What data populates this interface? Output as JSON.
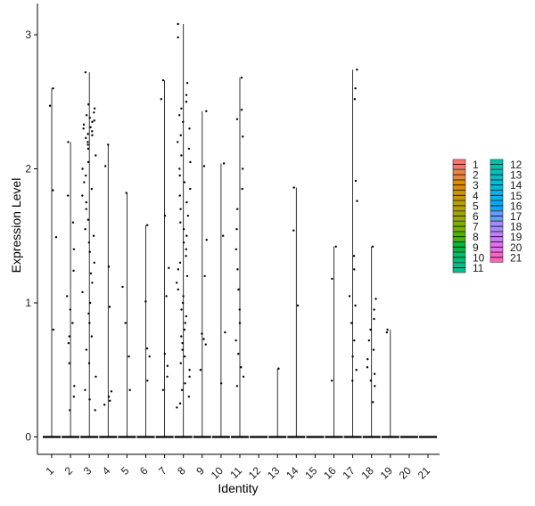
{
  "chart_data": {
    "type": "violin",
    "title": "",
    "xlabel": "Identity",
    "ylabel": "Expression Level",
    "ylim": [
      -0.15,
      3.2
    ],
    "yticks": [
      0,
      1,
      2,
      3
    ],
    "grid": false,
    "legend_placement": "right",
    "legend_columns": 2,
    "categories": [
      "1",
      "2",
      "3",
      "4",
      "5",
      "6",
      "7",
      "8",
      "9",
      "10",
      "11",
      "12",
      "13",
      "14",
      "15",
      "16",
      "17",
      "18",
      "19",
      "20",
      "21"
    ],
    "colors": [
      "#F8766D",
      "#ED813E",
      "#DE8C00",
      "#CD9600",
      "#B79F00",
      "#9DA700",
      "#7CAE00",
      "#49B500",
      "#00BA38",
      "#00BE6C",
      "#00BF8C",
      "#00C0AA",
      "#00BFC4",
      "#00BBDC",
      "#00B4F0",
      "#00A9FF",
      "#619CFF",
      "#9F8CFF",
      "#C77CFF",
      "#E76BF3",
      "#FF61C3"
    ],
    "max_values": [
      2.6,
      2.2,
      2.72,
      2.18,
      1.82,
      1.58,
      2.66,
      3.08,
      2.43,
      2.04,
      2.68,
      0,
      0.51,
      1.86,
      0,
      1.42,
      2.74,
      1.42,
      0.8,
      0,
      0
    ],
    "points": [
      {
        "group": "1",
        "values": [
          2.6,
          2.47,
          1.84,
          1.49,
          0.8
        ]
      },
      {
        "group": "2",
        "values": [
          2.2,
          1.8,
          1.6,
          1.4,
          1.24,
          1.05,
          0.95,
          0.85,
          0.75,
          0.7,
          0.55,
          0.38,
          0.3,
          0.2
        ]
      },
      {
        "group": "3",
        "values": [
          2.72,
          2.48,
          2.45,
          2.42,
          2.4,
          2.38,
          2.36,
          2.35,
          2.33,
          2.31,
          2.3,
          2.28,
          2.26,
          2.25,
          2.23,
          2.2,
          2.18,
          2.15,
          2.1,
          2.05,
          2.0,
          1.95,
          1.9,
          1.85,
          1.8,
          1.75,
          1.7,
          1.62,
          1.55,
          1.5,
          1.45,
          1.38,
          1.3,
          1.22,
          1.15,
          1.08,
          1.0,
          0.92,
          0.85,
          0.75,
          0.65,
          0.55,
          0.45,
          0.35,
          0.28,
          0.2
        ]
      },
      {
        "group": "4",
        "values": [
          2.18,
          2.02,
          1.27,
          0.97,
          0.34,
          0.3,
          0.27,
          0.24
        ]
      },
      {
        "group": "5",
        "values": [
          1.82,
          1.12,
          0.85,
          0.6,
          0.35
        ]
      },
      {
        "group": "6",
        "values": [
          1.58,
          1.01,
          0.66,
          0.6,
          0.42
        ]
      },
      {
        "group": "7",
        "values": [
          2.66,
          2.52,
          1.65,
          1.26,
          1.05,
          0.62,
          0.53,
          0.45,
          0.35
        ]
      },
      {
        "group": "8",
        "values": [
          3.08,
          2.98,
          2.64,
          2.55,
          2.5,
          2.45,
          2.4,
          2.35,
          2.3,
          2.25,
          2.2,
          2.15,
          2.1,
          2.05,
          2.0,
          1.95,
          1.9,
          1.85,
          1.8,
          1.75,
          1.7,
          1.65,
          1.6,
          1.55,
          1.5,
          1.45,
          1.4,
          1.35,
          1.3,
          1.25,
          1.2,
          1.15,
          1.1,
          1.05,
          1.0,
          0.95,
          0.9,
          0.85,
          0.8,
          0.75,
          0.7,
          0.65,
          0.6,
          0.55,
          0.5,
          0.45,
          0.4,
          0.35,
          0.3,
          0.25,
          0.22
        ]
      },
      {
        "group": "9",
        "values": [
          2.43,
          2.02,
          1.47,
          1.2,
          0.77,
          0.73,
          0.69,
          0.5
        ]
      },
      {
        "group": "10",
        "values": [
          2.04,
          1.5,
          0.78,
          0.4
        ]
      },
      {
        "group": "11",
        "values": [
          2.68,
          2.44,
          2.37,
          2.24,
          2.0,
          1.85,
          1.7,
          1.55,
          1.4,
          1.25,
          1.1,
          0.95,
          0.85,
          0.72,
          0.62,
          0.52,
          0.45,
          0.38
        ]
      },
      {
        "group": "13",
        "values": [
          0.51
        ]
      },
      {
        "group": "14",
        "values": [
          1.86,
          1.54,
          0.98
        ]
      },
      {
        "group": "16",
        "values": [
          1.42,
          1.18,
          0.42
        ]
      },
      {
        "group": "17",
        "values": [
          2.74,
          2.6,
          2.52,
          1.91,
          1.76,
          1.35,
          1.25,
          1.05,
          0.98,
          0.85,
          0.72,
          0.6,
          0.5,
          0.42
        ]
      },
      {
        "group": "18",
        "values": [
          1.42,
          1.03,
          0.95,
          0.88,
          0.8,
          0.72,
          0.65,
          0.58,
          0.52,
          0.47,
          0.42,
          0.38,
          0.26
        ]
      },
      {
        "group": "19",
        "values": [
          0.8,
          0.78
        ]
      }
    ]
  }
}
